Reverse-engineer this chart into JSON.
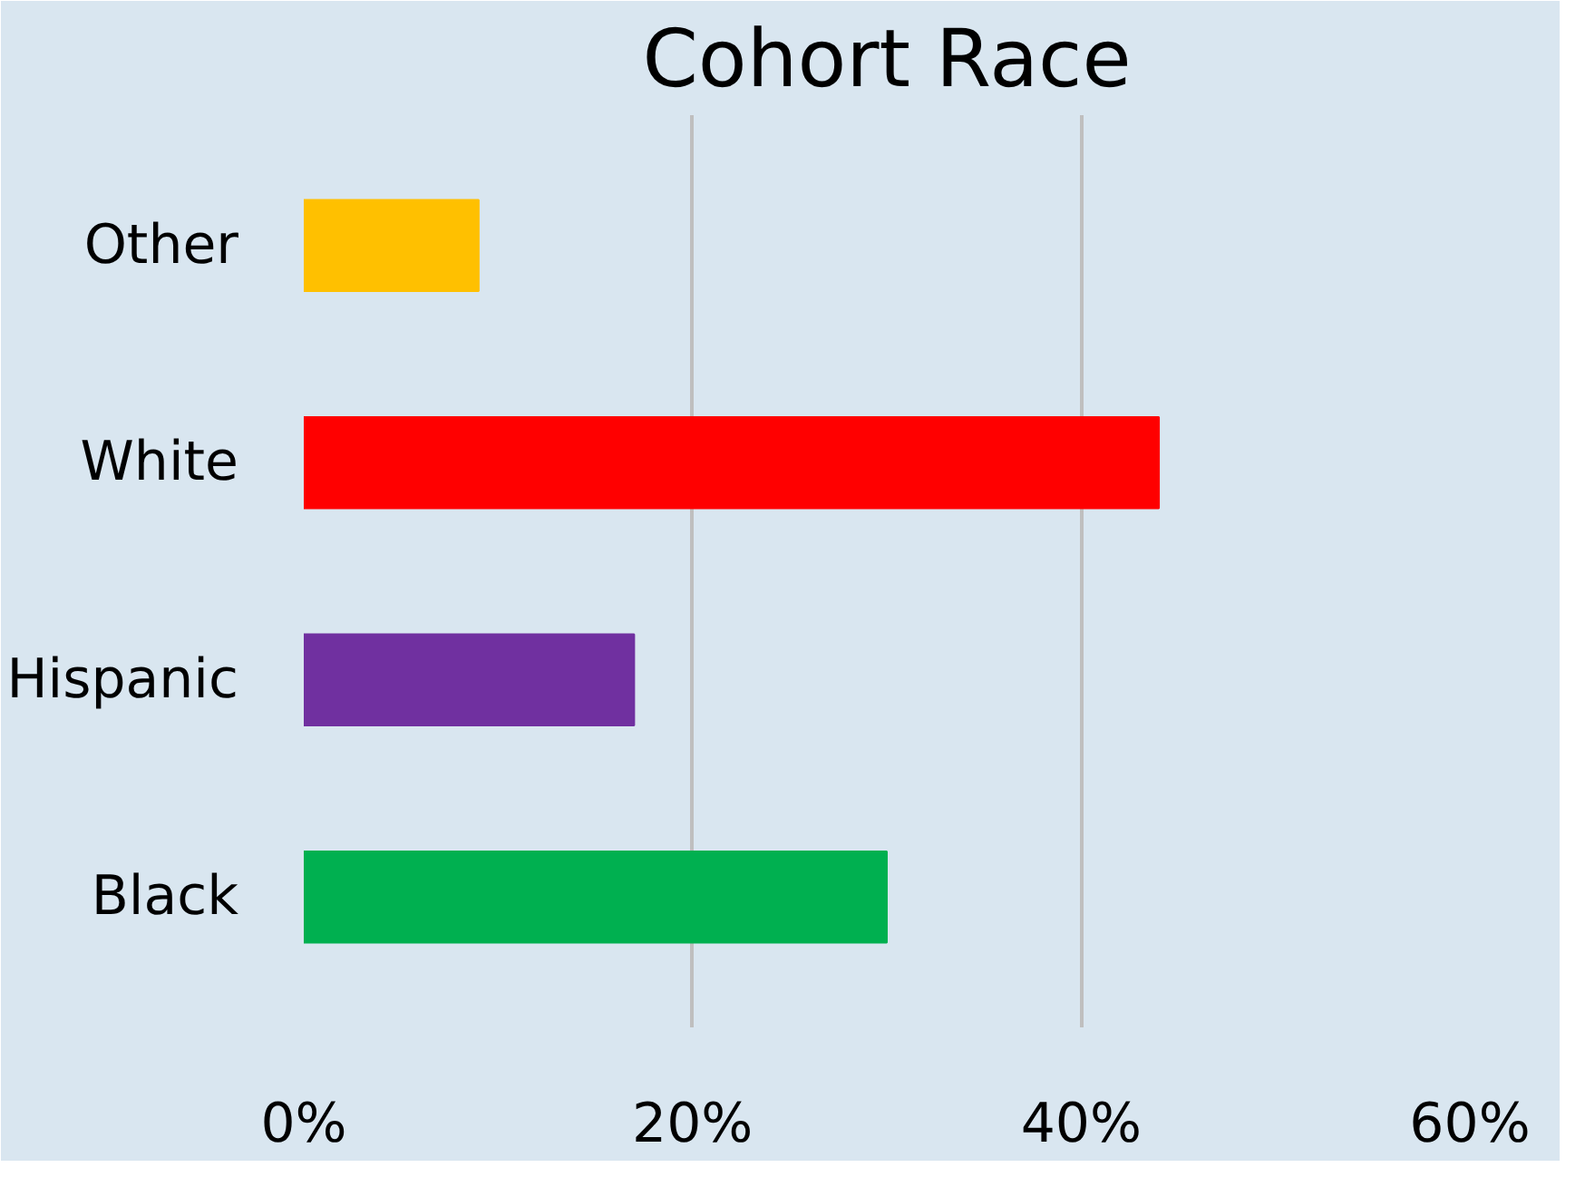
{
  "chart_data": {
    "type": "bar",
    "orientation": "horizontal",
    "title": "Cohort Race",
    "categories": [
      "Other",
      "White",
      "Hispanic",
      "Black"
    ],
    "values": [
      9,
      44,
      17,
      30
    ],
    "colors": [
      "#ffc000",
      "#ff0000",
      "#7030a0",
      "#00b050"
    ],
    "xlim": [
      0,
      60
    ],
    "xticks": [
      {
        "value": 0,
        "label": "0%"
      },
      {
        "value": 20,
        "label": "20%"
      },
      {
        "value": 40,
        "label": "40%"
      },
      {
        "value": 60,
        "label": "60%"
      }
    ],
    "grid": "x"
  }
}
